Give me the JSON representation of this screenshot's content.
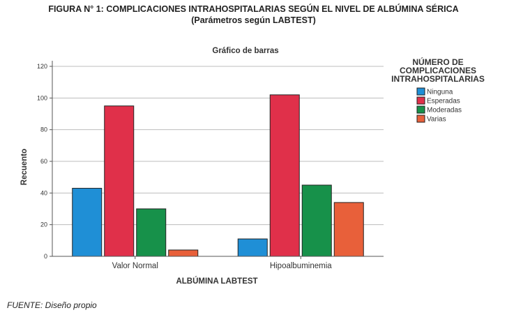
{
  "figure": {
    "title": "FIGURA N° 1: COMPLICACIONES INTRAHOSPITALARIAS SEGÚN EL NIVEL DE ALBÚMINA SÉRICA",
    "subtitle": "(Parámetros según LABTEST)",
    "source": "FUENTE: Diseño propio"
  },
  "chart_data": {
    "type": "bar",
    "title": "Gráfico de barras",
    "xlabel": "ALBÚMINA LABTEST",
    "ylabel": "Recuento",
    "ylim": [
      0,
      120
    ],
    "yticks": [
      0,
      20,
      40,
      60,
      80,
      100,
      120
    ],
    "grid": true,
    "legend_position": "right",
    "legend_title": [
      "NÚMERO DE",
      "COMPLICACIONES",
      "INTRAHOSPITALARIAS"
    ],
    "categories": [
      "Valor Normal",
      "Hipoalbuminemia"
    ],
    "series": [
      {
        "name": "Ninguna",
        "color": "#1f8fd6",
        "values": [
          43,
          11
        ]
      },
      {
        "name": "Esperadas",
        "color": "#e0304a",
        "values": [
          95,
          102
        ]
      },
      {
        "name": "Moderadas",
        "color": "#17914a",
        "values": [
          30,
          45
        ]
      },
      {
        "name": "Varias",
        "color": "#e8603a",
        "values": [
          4,
          34
        ]
      }
    ]
  }
}
